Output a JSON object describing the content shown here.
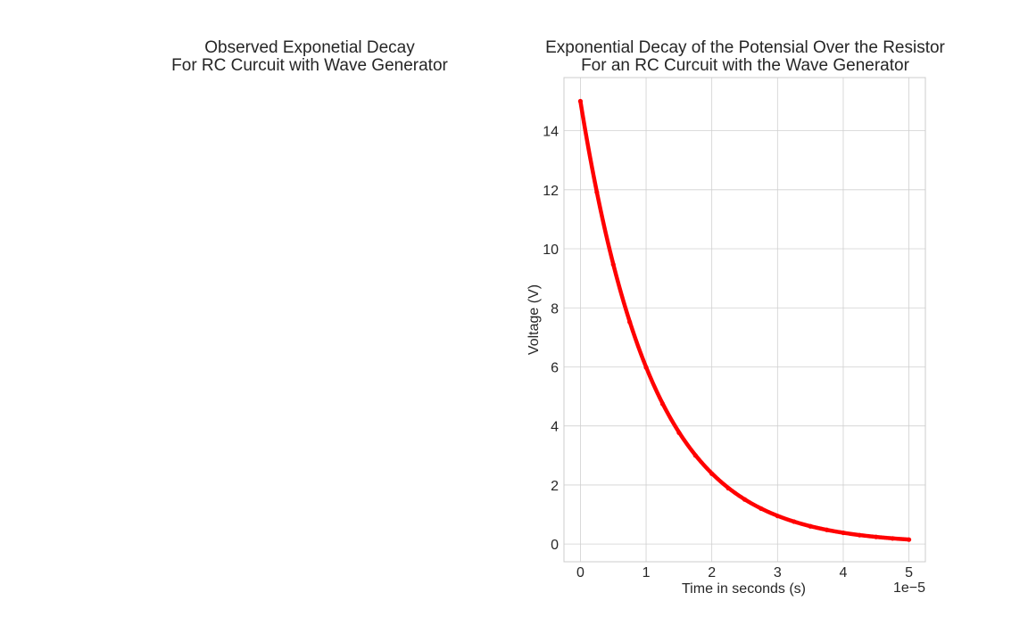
{
  "chart_data": [
    {
      "type": "empty",
      "title": "Observed Exponetial Decay\nFor RC Curcuit with Wave Generator",
      "title_lines": [
        "Observed Exponetial Decay",
        "For RC Curcuit with Wave Generator"
      ]
    },
    {
      "type": "scatter",
      "title": "Exponential Decay of the Potensial Over the Resistor\nFor an RC Curcuit with the Wave Generator",
      "title_lines": [
        "Exponential Decay of the Potensial Over the Resistor",
        "For an RC Curcuit with the Wave Generator"
      ],
      "xlabel": "Time in seconds (s)",
      "ylabel": "Voltage (V)",
      "x_offset_label": "1e−5",
      "xlim": [
        -0.25,
        5.25
      ],
      "ylim": [
        -0.6,
        15.8
      ],
      "xticks": [
        0,
        1,
        2,
        3,
        4,
        5
      ],
      "xtick_labels": [
        "0",
        "1",
        "2",
        "3",
        "4",
        "5"
      ],
      "yticks": [
        0,
        2,
        4,
        6,
        8,
        10,
        12,
        14
      ],
      "ytick_labels": [
        "0",
        "2",
        "4",
        "6",
        "8",
        "10",
        "12",
        "14"
      ],
      "grid": true,
      "marker_color": "#ff0000",
      "series_function": "V(t) = 15 * exp(-t / 1.09), t in units of 1e-5 s",
      "x": [
        0,
        0.25,
        0.5,
        0.75,
        1,
        1.25,
        1.5,
        1.75,
        2,
        2.25,
        2.5,
        2.75,
        3,
        3.25,
        3.5,
        3.75,
        4,
        4.25,
        4.5,
        4.75,
        5
      ],
      "y": [
        15.0,
        11.92,
        9.47,
        7.52,
        5.98,
        4.75,
        3.77,
        3.0,
        2.38,
        1.89,
        1.51,
        1.2,
        0.95,
        0.76,
        0.6,
        0.48,
        0.38,
        0.3,
        0.24,
        0.19,
        0.15
      ],
      "tau": 1.09,
      "v0": 15.0
    }
  ]
}
